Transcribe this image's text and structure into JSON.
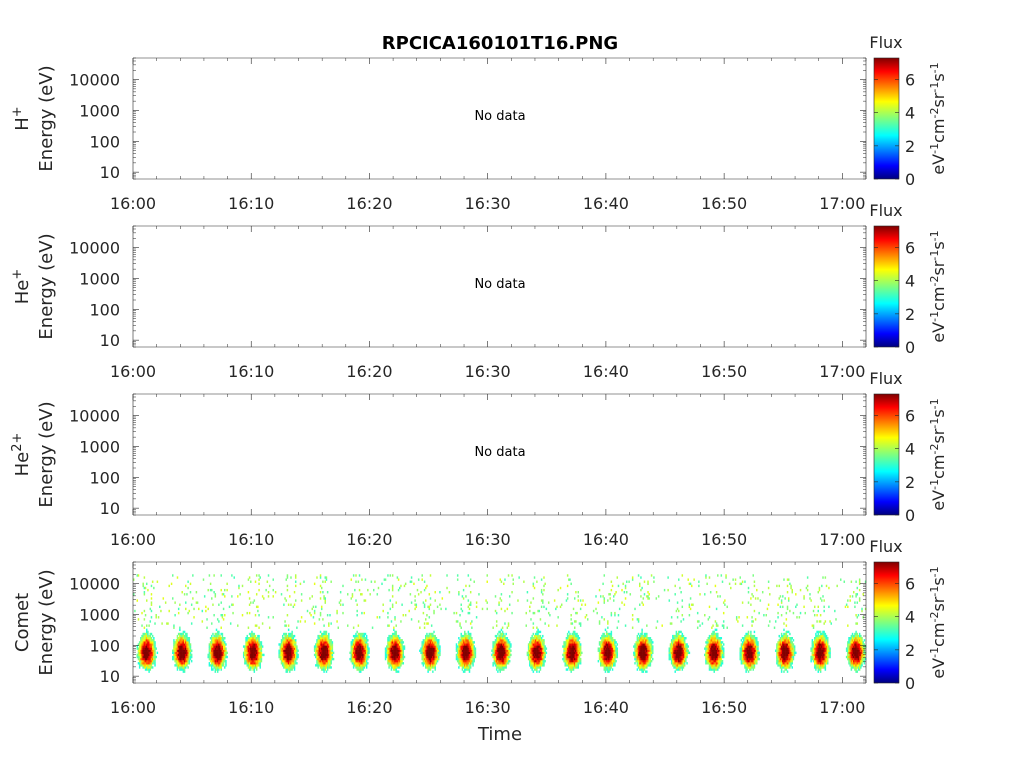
{
  "title": "RPCICA160101T16.PNG",
  "xlabel": "Time",
  "time_ticks": [
    "16:00",
    "16:10",
    "16:20",
    "16:30",
    "16:40",
    "16:50",
    "17:00"
  ],
  "energy_ticks": [
    "10",
    "100",
    "1000",
    "10000"
  ],
  "colorbar": {
    "title": "Flux",
    "label": "eV",
    "label_parts": [
      "eV",
      "-1",
      "cm",
      "-2",
      "sr",
      "-1",
      "s",
      "-1"
    ],
    "ticks": [
      "0",
      "2",
      "4",
      "6"
    ],
    "range": [
      0,
      7.3
    ],
    "colormap": "jet"
  },
  "chart_data": [
    {
      "type": "heatmap",
      "species": "H",
      "charge": "+",
      "ylabel": "Energy (eV)",
      "yscale": "log",
      "ylim": [
        6,
        50000
      ],
      "xlim": [
        "16:00",
        "17:02"
      ],
      "status": "No data"
    },
    {
      "type": "heatmap",
      "species": "He",
      "charge": "+",
      "ylabel": "Energy (eV)",
      "yscale": "log",
      "ylim": [
        6,
        50000
      ],
      "xlim": [
        "16:00",
        "17:02"
      ],
      "status": "No data"
    },
    {
      "type": "heatmap",
      "species": "He",
      "charge": "2+",
      "ylabel": "Energy (eV)",
      "yscale": "log",
      "ylim": [
        6,
        50000
      ],
      "xlim": [
        "16:00",
        "17:02"
      ],
      "status": "No data"
    },
    {
      "type": "heatmap",
      "species": "Comet",
      "charge": "",
      "ylabel": "Energy (eV)",
      "yscale": "log",
      "ylim": [
        6,
        50000
      ],
      "xlim": [
        "16:00",
        "17:02"
      ],
      "status": "",
      "peak_flux_energy_eV": 50,
      "burst_start_times": [
        "16:00",
        "16:03",
        "16:06",
        "16:09",
        "16:12",
        "16:15",
        "16:18",
        "16:21",
        "16:24",
        "16:27",
        "16:30",
        "16:33",
        "16:36",
        "16:39",
        "16:42",
        "16:45",
        "16:48",
        "16:51",
        "16:54",
        "16:57",
        "17:00"
      ]
    }
  ]
}
